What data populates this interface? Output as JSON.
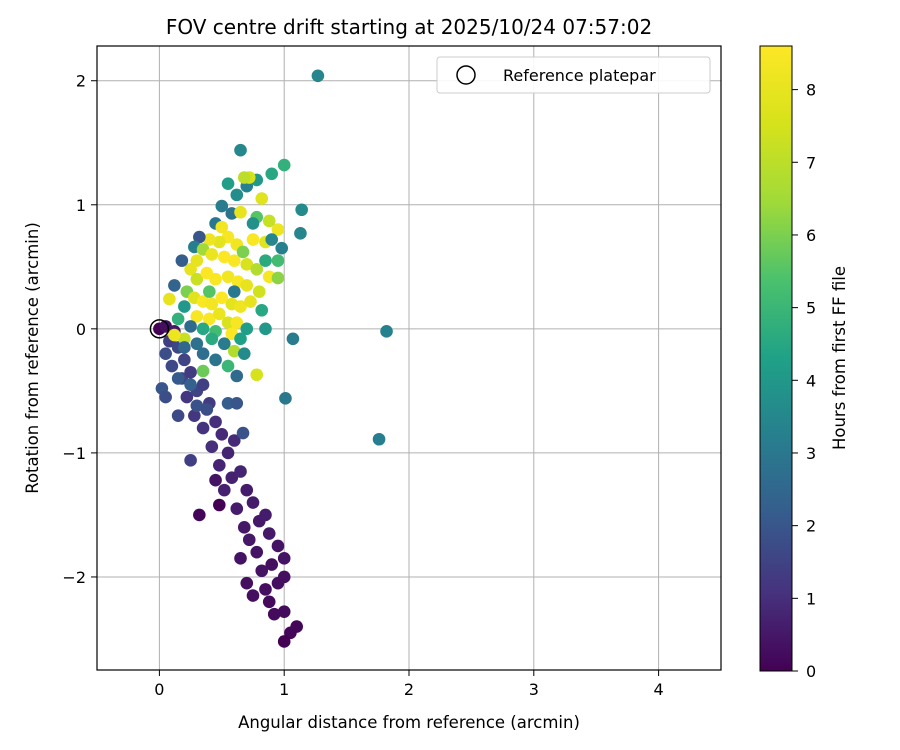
{
  "chart_data": {
    "type": "scatter",
    "title": "FOV centre drift starting at 2025/10/24 07:57:02",
    "xlabel": "Angular distance from reference (arcmin)",
    "ylabel": "Rotation from reference (arcmin)",
    "xlim": [
      -0.5,
      4.5
    ],
    "ylim": [
      -2.75,
      2.28
    ],
    "xticks": [
      0,
      1,
      2,
      3,
      4
    ],
    "yticks": [
      -2,
      -1,
      0,
      1,
      2
    ],
    "grid": true,
    "legend": {
      "placement": "top-right",
      "entries": [
        "Reference platepar"
      ]
    },
    "reference_point": {
      "x": 0,
      "y": 0,
      "label": "Reference platepar"
    },
    "colorbar": {
      "label": "Hours from first FF file",
      "min": 0,
      "max": 8.6,
      "ticks": [
        0,
        1,
        2,
        3,
        4,
        5,
        6,
        7,
        8
      ],
      "colormap": "viridis"
    },
    "points": [
      {
        "x": 0.0,
        "y": 0.0,
        "c": 0.0
      },
      {
        "x": 0.05,
        "y": 0.02,
        "c": 0.3
      },
      {
        "x": 0.12,
        "y": -0.02,
        "c": 0.5
      },
      {
        "x": 0.08,
        "y": -0.1,
        "c": 1.4
      },
      {
        "x": 0.15,
        "y": -0.15,
        "c": 1.6
      },
      {
        "x": 0.1,
        "y": -0.3,
        "c": 1.7
      },
      {
        "x": 0.2,
        "y": -0.25,
        "c": 1.5
      },
      {
        "x": 0.05,
        "y": -0.2,
        "c": 1.8
      },
      {
        "x": 0.18,
        "y": -0.4,
        "c": 1.6
      },
      {
        "x": 0.25,
        "y": -0.35,
        "c": 1.3
      },
      {
        "x": 0.22,
        "y": -0.55,
        "c": 1.2
      },
      {
        "x": 0.3,
        "y": -0.5,
        "c": 1.5
      },
      {
        "x": 0.35,
        "y": -0.45,
        "c": 1.4
      },
      {
        "x": 0.4,
        "y": -0.6,
        "c": 1.3
      },
      {
        "x": 0.28,
        "y": -0.7,
        "c": 1.2
      },
      {
        "x": 0.35,
        "y": -0.8,
        "c": 1.1
      },
      {
        "x": 0.45,
        "y": -0.75,
        "c": 1.0
      },
      {
        "x": 0.5,
        "y": -0.85,
        "c": 0.9
      },
      {
        "x": 0.42,
        "y": -0.95,
        "c": 1.0
      },
      {
        "x": 0.55,
        "y": -1.0,
        "c": 0.8
      },
      {
        "x": 0.6,
        "y": -0.9,
        "c": 0.9
      },
      {
        "x": 0.48,
        "y": -1.1,
        "c": 0.8
      },
      {
        "x": 0.58,
        "y": -1.2,
        "c": 0.7
      },
      {
        "x": 0.65,
        "y": -1.15,
        "c": 0.8
      },
      {
        "x": 0.52,
        "y": -1.3,
        "c": 0.7
      },
      {
        "x": 0.7,
        "y": -1.3,
        "c": 0.6
      },
      {
        "x": 0.75,
        "y": -1.4,
        "c": 0.6
      },
      {
        "x": 0.62,
        "y": -1.45,
        "c": 0.6
      },
      {
        "x": 0.8,
        "y": -1.55,
        "c": 0.5
      },
      {
        "x": 0.68,
        "y": -1.6,
        "c": 0.5
      },
      {
        "x": 0.85,
        "y": -1.5,
        "c": 0.6
      },
      {
        "x": 0.72,
        "y": -1.7,
        "c": 0.5
      },
      {
        "x": 0.88,
        "y": -1.65,
        "c": 0.5
      },
      {
        "x": 0.78,
        "y": -1.8,
        "c": 0.4
      },
      {
        "x": 0.95,
        "y": -1.75,
        "c": 0.4
      },
      {
        "x": 0.65,
        "y": -1.85,
        "c": 0.4
      },
      {
        "x": 0.82,
        "y": -1.95,
        "c": 0.4
      },
      {
        "x": 0.9,
        "y": -1.9,
        "c": 0.3
      },
      {
        "x": 1.0,
        "y": -1.85,
        "c": 0.4
      },
      {
        "x": 0.7,
        "y": -2.05,
        "c": 0.3
      },
      {
        "x": 0.85,
        "y": -2.1,
        "c": 0.3
      },
      {
        "x": 0.95,
        "y": -2.05,
        "c": 0.3
      },
      {
        "x": 1.0,
        "y": -2.0,
        "c": 0.3
      },
      {
        "x": 0.75,
        "y": -2.15,
        "c": 0.3
      },
      {
        "x": 0.88,
        "y": -2.2,
        "c": 0.2
      },
      {
        "x": 0.92,
        "y": -2.3,
        "c": 0.2
      },
      {
        "x": 1.0,
        "y": -2.28,
        "c": 0.2
      },
      {
        "x": 1.1,
        "y": -2.4,
        "c": 0.1
      },
      {
        "x": 1.05,
        "y": -2.45,
        "c": 0.1
      },
      {
        "x": 1.0,
        "y": -2.52,
        "c": 0.0
      },
      {
        "x": 0.32,
        "y": -1.5,
        "c": 0.1
      },
      {
        "x": 0.48,
        "y": -1.42,
        "c": 0.0
      },
      {
        "x": 0.45,
        "y": -1.22,
        "c": 0.4
      },
      {
        "x": 0.25,
        "y": -1.06,
        "c": 1.4
      },
      {
        "x": 0.02,
        "y": -0.48,
        "c": 2.0
      },
      {
        "x": 0.05,
        "y": -0.55,
        "c": 1.8
      },
      {
        "x": 0.15,
        "y": -0.7,
        "c": 1.7
      },
      {
        "x": 0.3,
        "y": -0.62,
        "c": 1.9
      },
      {
        "x": 0.38,
        "y": -0.65,
        "c": 1.8
      },
      {
        "x": 0.55,
        "y": -0.6,
        "c": 2.2
      },
      {
        "x": 0.62,
        "y": -0.6,
        "c": 2.0
      },
      {
        "x": 0.67,
        "y": -0.84,
        "c": 1.9
      },
      {
        "x": 1.01,
        "y": -0.56,
        "c": 3.0
      },
      {
        "x": 1.76,
        "y": -0.89,
        "c": 3.2
      },
      {
        "x": 1.82,
        "y": -0.02,
        "c": 3.3
      },
      {
        "x": 1.07,
        "y": -0.08,
        "c": 3.1
      },
      {
        "x": 1.27,
        "y": 2.04,
        "c": 3.4
      },
      {
        "x": 0.65,
        "y": 1.44,
        "c": 3.5
      },
      {
        "x": 1.0,
        "y": 1.32,
        "c": 4.8
      },
      {
        "x": 0.9,
        "y": 1.25,
        "c": 4.5
      },
      {
        "x": 1.14,
        "y": 0.96,
        "c": 3.6
      },
      {
        "x": 1.13,
        "y": 0.77,
        "c": 3.4
      },
      {
        "x": 0.55,
        "y": 1.17,
        "c": 4.2
      },
      {
        "x": 0.62,
        "y": 1.08,
        "c": 3.7
      },
      {
        "x": 0.7,
        "y": 1.15,
        "c": 3.3
      },
      {
        "x": 0.78,
        "y": 1.2,
        "c": 4.0
      },
      {
        "x": 0.5,
        "y": 0.99,
        "c": 3.1
      },
      {
        "x": 0.45,
        "y": 0.85,
        "c": 3.0
      },
      {
        "x": 0.58,
        "y": 0.93,
        "c": 2.9
      },
      {
        "x": 0.72,
        "y": 1.22,
        "c": 7.5
      },
      {
        "x": 0.68,
        "y": 1.22,
        "c": 7.0
      },
      {
        "x": 0.82,
        "y": 1.05,
        "c": 7.8
      },
      {
        "x": 0.95,
        "y": 0.8,
        "c": 8.2
      },
      {
        "x": 0.88,
        "y": 0.87,
        "c": 7.2
      },
      {
        "x": 0.78,
        "y": 0.9,
        "c": 5.5
      },
      {
        "x": 0.65,
        "y": 0.94,
        "c": 8.0
      },
      {
        "x": 0.85,
        "y": 0.7,
        "c": 7.8
      },
      {
        "x": 0.75,
        "y": 0.72,
        "c": 8.5
      },
      {
        "x": 0.62,
        "y": 0.68,
        "c": 8.3
      },
      {
        "x": 0.55,
        "y": 0.74,
        "c": 8.4
      },
      {
        "x": 0.48,
        "y": 0.7,
        "c": 7.9
      },
      {
        "x": 0.4,
        "y": 0.72,
        "c": 8.2
      },
      {
        "x": 0.32,
        "y": 0.74,
        "c": 2.0
      },
      {
        "x": 0.28,
        "y": 0.66,
        "c": 3.2
      },
      {
        "x": 0.35,
        "y": 0.64,
        "c": 6.5
      },
      {
        "x": 0.42,
        "y": 0.6,
        "c": 8.1
      },
      {
        "x": 0.52,
        "y": 0.58,
        "c": 8.6
      },
      {
        "x": 0.6,
        "y": 0.55,
        "c": 8.5
      },
      {
        "x": 0.7,
        "y": 0.52,
        "c": 7.6
      },
      {
        "x": 0.78,
        "y": 0.48,
        "c": 6.8
      },
      {
        "x": 0.88,
        "y": 0.42,
        "c": 8.4
      },
      {
        "x": 0.95,
        "y": 0.41,
        "c": 6.2
      },
      {
        "x": 0.98,
        "y": 0.65,
        "c": 3.3
      },
      {
        "x": 0.85,
        "y": 0.55,
        "c": 4.6
      },
      {
        "x": 0.25,
        "y": 0.48,
        "c": 8.0
      },
      {
        "x": 0.3,
        "y": 0.4,
        "c": 7.3
      },
      {
        "x": 0.38,
        "y": 0.45,
        "c": 8.6
      },
      {
        "x": 0.45,
        "y": 0.4,
        "c": 8.5
      },
      {
        "x": 0.55,
        "y": 0.42,
        "c": 8.3
      },
      {
        "x": 0.63,
        "y": 0.38,
        "c": 8.4
      },
      {
        "x": 0.7,
        "y": 0.35,
        "c": 8.0
      },
      {
        "x": 0.8,
        "y": 0.3,
        "c": 7.4
      },
      {
        "x": 0.18,
        "y": 0.55,
        "c": 2.2
      },
      {
        "x": 0.12,
        "y": 0.35,
        "c": 2.4
      },
      {
        "x": 0.22,
        "y": 0.3,
        "c": 6.0
      },
      {
        "x": 0.28,
        "y": 0.25,
        "c": 7.8
      },
      {
        "x": 0.35,
        "y": 0.22,
        "c": 8.5
      },
      {
        "x": 0.42,
        "y": 0.2,
        "c": 8.3
      },
      {
        "x": 0.5,
        "y": 0.25,
        "c": 8.6
      },
      {
        "x": 0.58,
        "y": 0.2,
        "c": 7.9
      },
      {
        "x": 0.65,
        "y": 0.18,
        "c": 8.2
      },
      {
        "x": 0.73,
        "y": 0.22,
        "c": 8.0
      },
      {
        "x": 0.82,
        "y": 0.15,
        "c": 4.5
      },
      {
        "x": 0.08,
        "y": 0.24,
        "c": 8.0
      },
      {
        "x": 0.2,
        "y": 0.18,
        "c": 4.0
      },
      {
        "x": 0.3,
        "y": 0.1,
        "c": 8.4
      },
      {
        "x": 0.4,
        "y": 0.08,
        "c": 8.5
      },
      {
        "x": 0.48,
        "y": 0.12,
        "c": 8.1
      },
      {
        "x": 0.55,
        "y": 0.05,
        "c": 7.6
      },
      {
        "x": 0.62,
        "y": 0.05,
        "c": 8.4
      },
      {
        "x": 0.7,
        "y": 0.0,
        "c": 4.2
      },
      {
        "x": 0.85,
        "y": 0.0,
        "c": 4.0
      },
      {
        "x": 0.15,
        "y": 0.08,
        "c": 4.8
      },
      {
        "x": 0.25,
        "y": 0.02,
        "c": 2.6
      },
      {
        "x": 0.35,
        "y": 0.0,
        "c": 4.5
      },
      {
        "x": 0.45,
        "y": -0.02,
        "c": 5.2
      },
      {
        "x": 0.58,
        "y": -0.04,
        "c": 8.6
      },
      {
        "x": 0.65,
        "y": -0.08,
        "c": 4.3
      },
      {
        "x": 0.2,
        "y": -0.08,
        "c": 7.2
      },
      {
        "x": 0.3,
        "y": -0.12,
        "c": 2.8
      },
      {
        "x": 0.42,
        "y": -0.08,
        "c": 4.6
      },
      {
        "x": 0.52,
        "y": -0.12,
        "c": 3.1
      },
      {
        "x": 0.6,
        "y": -0.18,
        "c": 6.8
      },
      {
        "x": 0.68,
        "y": -0.2,
        "c": 3.6
      },
      {
        "x": 0.2,
        "y": -0.15,
        "c": 2.5
      },
      {
        "x": 0.35,
        "y": -0.2,
        "c": 2.7
      },
      {
        "x": 0.45,
        "y": -0.25,
        "c": 2.9
      },
      {
        "x": 0.55,
        "y": -0.3,
        "c": 5.0
      },
      {
        "x": 0.62,
        "y": -0.38,
        "c": 2.6
      },
      {
        "x": 0.78,
        "y": -0.37,
        "c": 7.5
      },
      {
        "x": 0.35,
        "y": -0.34,
        "c": 5.8
      },
      {
        "x": 0.25,
        "y": -0.45,
        "c": 2.3
      },
      {
        "x": 0.15,
        "y": -0.4,
        "c": 2.1
      },
      {
        "x": 0.12,
        "y": -0.05,
        "c": 8.2
      },
      {
        "x": 0.3,
        "y": 0.55,
        "c": 8.0
      },
      {
        "x": 0.5,
        "y": 0.82,
        "c": 8.3
      },
      {
        "x": 0.9,
        "y": 0.72,
        "c": 3.4
      },
      {
        "x": 0.75,
        "y": 0.85,
        "c": 3.8
      },
      {
        "x": 0.6,
        "y": 0.3,
        "c": 3.0
      },
      {
        "x": 0.4,
        "y": 0.3,
        "c": 5.5
      },
      {
        "x": 0.95,
        "y": 0.55,
        "c": 5.2
      },
      {
        "x": 0.67,
        "y": 0.62,
        "c": 6.0
      }
    ]
  }
}
